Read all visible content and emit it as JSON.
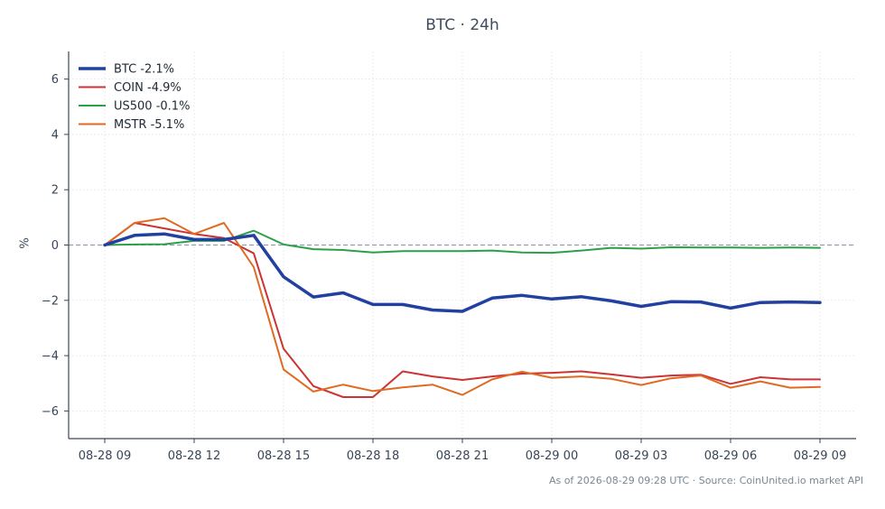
{
  "chart_data": {
    "type": "line",
    "title": "BTC · 24h",
    "ylabel": "%",
    "xlabel": "",
    "source": "As of 2026-08-29 09:28 UTC · Source: CoinUnited.io market API",
    "x": [
      "08-28 09",
      "08-28 10",
      "08-28 11",
      "08-28 12",
      "08-28 13",
      "08-28 14",
      "08-28 15",
      "08-28 16",
      "08-28 17",
      "08-28 18",
      "08-28 19",
      "08-28 20",
      "08-28 21",
      "08-28 22",
      "08-28 23",
      "08-29 00",
      "08-29 01",
      "08-29 02",
      "08-29 03",
      "08-29 04",
      "08-29 05",
      "08-29 06",
      "08-29 07",
      "08-29 08",
      "08-29 09"
    ],
    "xticks": [
      "08-28 09",
      "08-28 12",
      "08-28 15",
      "08-28 18",
      "08-28 21",
      "08-29 00",
      "08-29 03",
      "08-29 06",
      "08-29 09"
    ],
    "yticks": [
      -6,
      -4,
      -2,
      0,
      2,
      4,
      6
    ],
    "ytick_labels": [
      "−6",
      "−4",
      "−2",
      "0",
      "2",
      "4",
      "6"
    ],
    "ylim": [
      -7,
      7
    ],
    "grid": true,
    "zero_line": true,
    "legend_position": "top-left",
    "series": [
      {
        "name": "BTC -2.1%",
        "color": "#2140a0",
        "width": 3.5,
        "values": [
          0.0,
          0.35,
          0.4,
          0.2,
          0.2,
          0.35,
          -1.15,
          -1.88,
          -1.73,
          -2.15,
          -2.15,
          -2.35,
          -2.4,
          -1.92,
          -1.82,
          -1.95,
          -1.87,
          -2.02,
          -2.22,
          -2.05,
          -2.06,
          -2.28,
          -2.08,
          -2.06,
          -2.08
        ]
      },
      {
        "name": "COIN -4.9%",
        "color": "#cc3333",
        "width": 2,
        "values": [
          0.0,
          0.8,
          0.6,
          0.4,
          0.25,
          -0.3,
          -3.75,
          -5.1,
          -5.5,
          -5.5,
          -4.57,
          -4.75,
          -4.88,
          -4.75,
          -4.65,
          -4.62,
          -4.57,
          -4.68,
          -4.8,
          -4.72,
          -4.69,
          -5.02,
          -4.78,
          -4.86,
          -4.86
        ]
      },
      {
        "name": "US500 -0.1%",
        "color": "#2aa048",
        "width": 2,
        "values": [
          0.0,
          0.02,
          0.03,
          0.15,
          0.15,
          0.52,
          0.02,
          -0.15,
          -0.18,
          -0.27,
          -0.22,
          -0.22,
          -0.22,
          -0.2,
          -0.27,
          -0.28,
          -0.2,
          -0.1,
          -0.13,
          -0.08,
          -0.09,
          -0.09,
          -0.1,
          -0.09,
          -0.1
        ]
      },
      {
        "name": "MSTR -5.1%",
        "color": "#e06a22",
        "width": 2,
        "values": [
          0.0,
          0.8,
          0.97,
          0.4,
          0.8,
          -0.8,
          -4.5,
          -5.3,
          -5.05,
          -5.28,
          -5.15,
          -5.05,
          -5.42,
          -4.86,
          -4.58,
          -4.8,
          -4.75,
          -4.84,
          -5.06,
          -4.82,
          -4.72,
          -5.16,
          -4.93,
          -5.16,
          -5.13
        ]
      }
    ]
  }
}
